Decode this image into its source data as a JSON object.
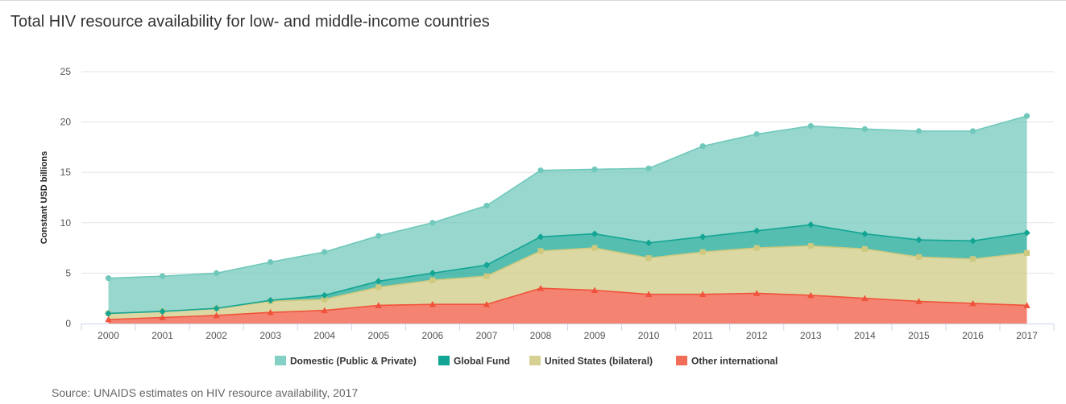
{
  "chart_data": {
    "type": "area",
    "stacked": true,
    "title": "Total HIV resource availability for low- and middle-income countries",
    "ylabel": "Constant USD billions",
    "xlabel": "",
    "ylim": [
      0,
      25
    ],
    "yticks": [
      "0",
      "5",
      "10",
      "15",
      "20",
      "25"
    ],
    "categories": [
      "2000",
      "2001",
      "2002",
      "2003",
      "2004",
      "2005",
      "2006",
      "2007",
      "2008",
      "2009",
      "2010",
      "2011",
      "2012",
      "2013",
      "2014",
      "2015",
      "2016",
      "2017"
    ],
    "grid": "horizontal",
    "legend_position": "bottom",
    "series": [
      {
        "name": "Other international",
        "color": "#f0533b",
        "marker": "triangle",
        "values": [
          0.4,
          0.6,
          0.8,
          1.1,
          1.3,
          1.8,
          1.9,
          1.9,
          3.5,
          3.3,
          2.9,
          2.9,
          3.0,
          2.8,
          2.5,
          2.2,
          2.0,
          1.8
        ]
      },
      {
        "name": "United States (bilateral)",
        "color": "#cfc97f",
        "marker": "square",
        "values": [
          0.6,
          0.6,
          0.7,
          1.1,
          1.1,
          1.8,
          2.4,
          2.8,
          3.7,
          4.2,
          3.6,
          4.2,
          4.5,
          4.9,
          4.9,
          4.4,
          4.4,
          5.2
        ]
      },
      {
        "name": "Global Fund",
        "color": "#13a593",
        "marker": "diamond",
        "values": [
          0.0,
          0.0,
          0.0,
          0.1,
          0.4,
          0.6,
          0.7,
          1.1,
          1.4,
          1.4,
          1.5,
          1.5,
          1.7,
          2.1,
          1.5,
          1.7,
          1.8,
          2.0
        ]
      },
      {
        "name": "Domestic (Public & Private)",
        "color": "#6fc8bb",
        "marker": "circle",
        "values": [
          3.5,
          3.5,
          3.5,
          3.8,
          4.3,
          4.5,
          5.0,
          5.9,
          6.6,
          6.4,
          7.4,
          9.0,
          9.6,
          9.8,
          10.4,
          10.8,
          10.9,
          11.6
        ]
      }
    ],
    "legend_order": [
      "Domestic (Public & Private)",
      "Global Fund",
      "United States (bilateral)",
      "Other international"
    ]
  },
  "footer": {
    "source": "Source: UNAIDS estimates on HIV resource availability, 2017"
  }
}
